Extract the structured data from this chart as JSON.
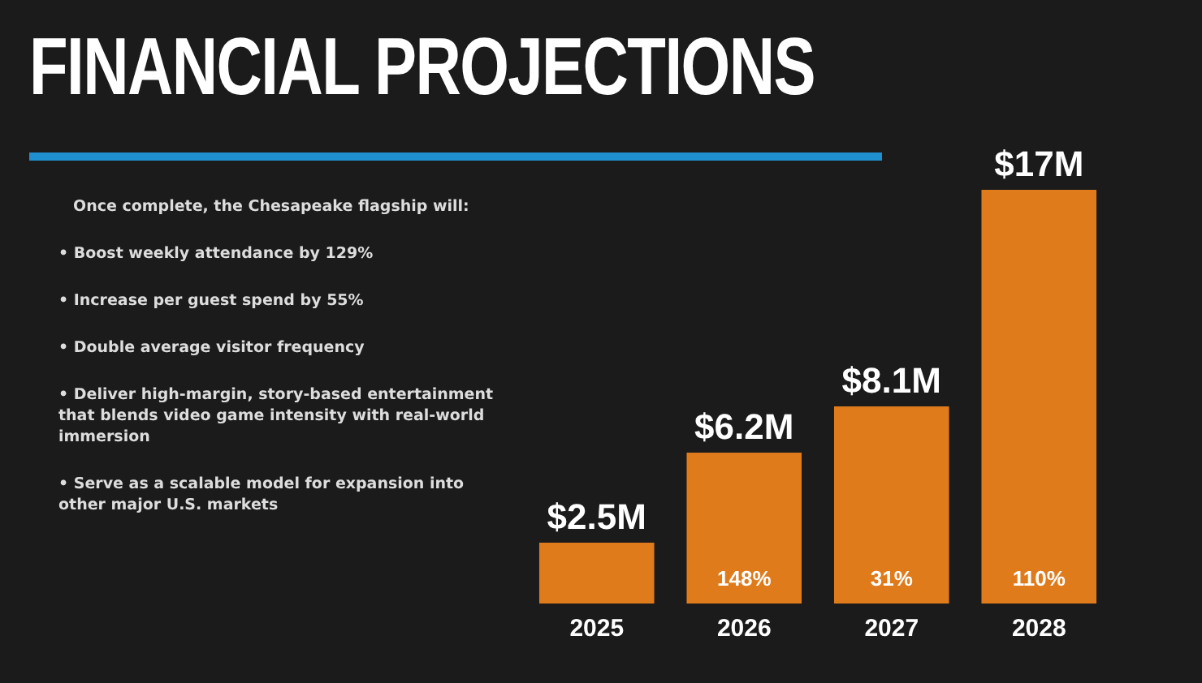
{
  "chart_data": {
    "type": "bar",
    "title": "FINANCIAL PROJECTIONS",
    "subtitle": "Once complete, the Chesapeake flagship will:",
    "categories": [
      "2025",
      "2026",
      "2027",
      "2028"
    ],
    "values": [
      2.5,
      6.2,
      8.1,
      17
    ],
    "value_labels": [
      "$2.5M",
      "$6.2M",
      "$8.1M",
      "$17M"
    ],
    "color": "#e07b1c",
    "annotations": [
      "• Boost weekly attendance by 129%",
      "• Increase per guest spend by 55%",
      "• Double average visitor frequency",
      "• Deliver high-margin, story-based entertainment that blends video game intensity with real-world immersion",
      "• Serve as a scalable model for expansion into other major U.S. markets",
      "148%",
      "31%",
      "110%"
    ]
  }
}
